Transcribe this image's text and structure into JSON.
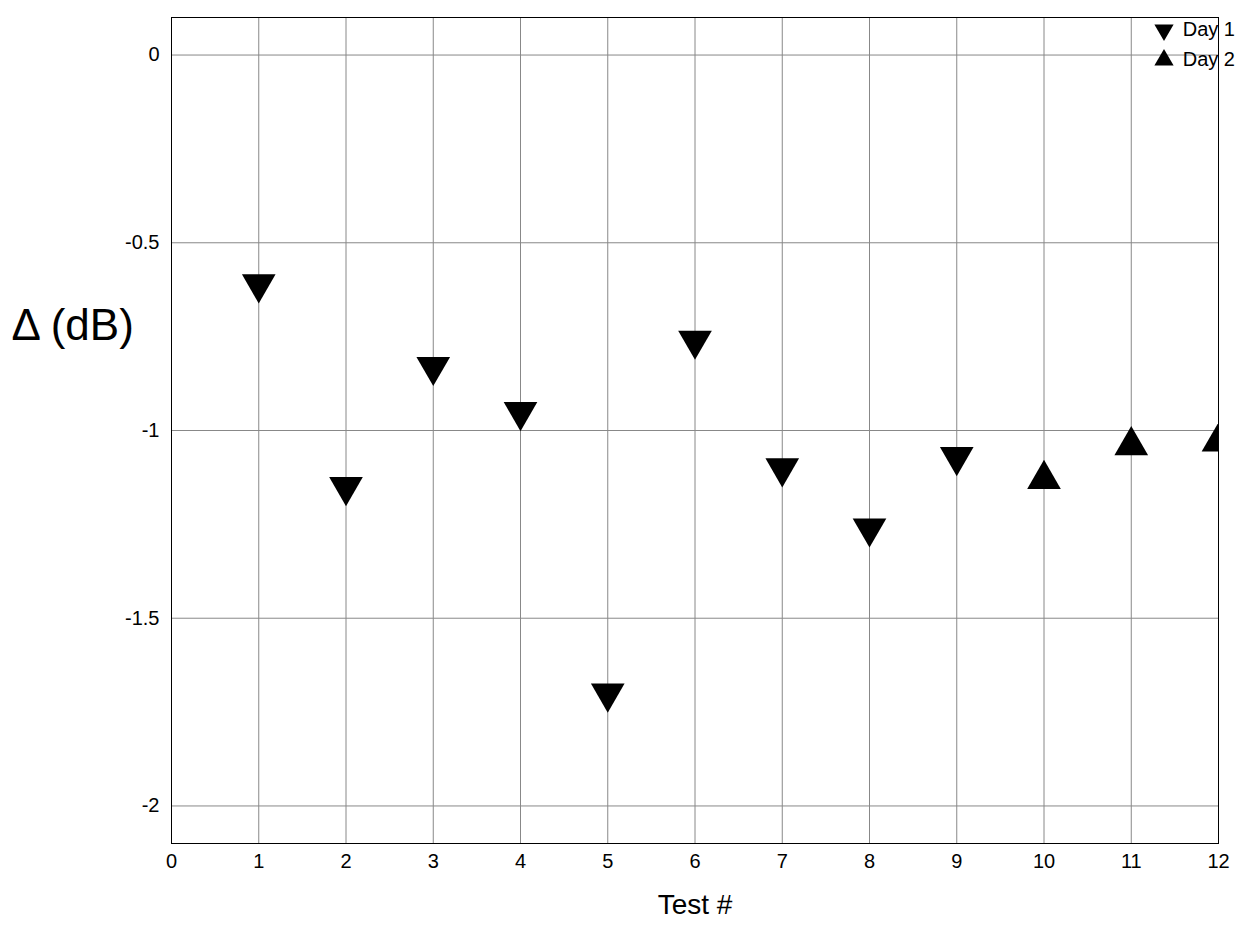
{
  "chart_data": {
    "type": "scatter",
    "x_label": "Test #",
    "y_label": "Δ (dB)",
    "series": [
      {
        "name": "Day 1",
        "color": "#000000",
        "marker": "triangle-down",
        "x": [
          1,
          2,
          3,
          4,
          5,
          6,
          7,
          8,
          9
        ],
        "values": [
          -0.61,
          -1.15,
          -0.83,
          -0.95,
          -1.7,
          -0.76,
          -1.1,
          -1.26,
          -1.07
        ]
      },
      {
        "name": "Day 2",
        "color": "#000000",
        "marker": "triangle-up",
        "x": [
          10,
          11,
          12
        ],
        "values": [
          -1.13,
          -1.04,
          -1.03
        ]
      }
    ],
    "xlim": [
      0,
      12
    ],
    "xticks": [
      0,
      1,
      2,
      3,
      4,
      5,
      6,
      7,
      8,
      9,
      10,
      11,
      12
    ],
    "ylim": [
      -2.1,
      0.1
    ],
    "yticks": [
      -2,
      -1.5,
      -1,
      -0.5,
      0
    ],
    "grid": true,
    "legend": "top-right"
  }
}
